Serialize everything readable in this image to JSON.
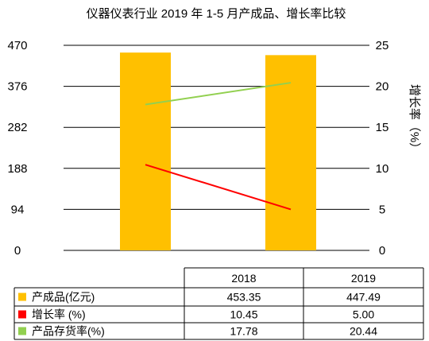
{
  "chart_data": {
    "type": "bar",
    "title": "仪器仪表行业 2019 年 1-5 月产成品、增长率比较",
    "categories": [
      "2018",
      "2019"
    ],
    "left_axis": {
      "ticks": [
        "0",
        "94",
        "188",
        "282",
        "376",
        "470"
      ],
      "min": 0,
      "max": 470
    },
    "right_axis": {
      "label": "增长率（%）",
      "ticks": [
        "0",
        "5",
        "10",
        "15",
        "20",
        "25"
      ],
      "min": 0,
      "max": 25
    },
    "grid": true,
    "legend": "table-below",
    "series": [
      {
        "name": "产成品(亿元)",
        "kind": "bar",
        "axis": "left",
        "color": "#FFC000",
        "values": [
          453.35,
          447.49
        ],
        "labels": [
          "453.35",
          "447.49"
        ]
      },
      {
        "name": "增长率  (%)",
        "kind": "line",
        "axis": "right",
        "color": "#FF0000",
        "values": [
          10.45,
          5.0
        ],
        "labels": [
          "10.45",
          "5.00"
        ]
      },
      {
        "name": "产品存货率(%)",
        "kind": "line",
        "axis": "right",
        "color": "#92D050",
        "values": [
          17.78,
          20.44
        ],
        "labels": [
          "17.78",
          "20.44"
        ]
      }
    ]
  }
}
